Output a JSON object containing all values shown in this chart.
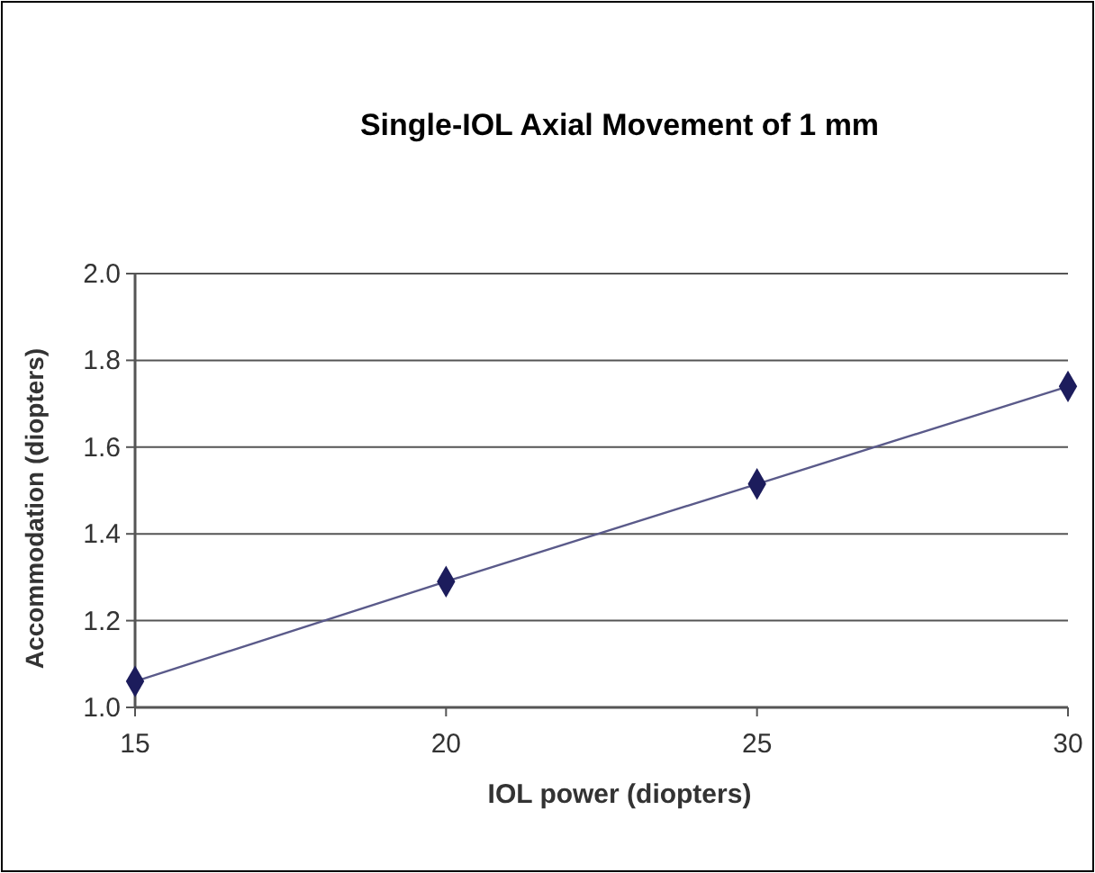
{
  "chart_data": {
    "type": "line",
    "title": "Single-IOL Axial Movement of 1 mm",
    "xlabel": "IOL power (diopters)",
    "ylabel": "Accommodation (diopters)",
    "x": [
      15,
      20,
      25,
      30
    ],
    "series": [
      {
        "color": "#1c1c5c",
        "values": [
          1.06,
          1.29,
          1.515,
          1.74
        ]
      }
    ],
    "xlim": [
      15,
      30
    ],
    "xticks": [
      15,
      20,
      25,
      30
    ],
    "ylim": [
      1.0,
      2.0
    ],
    "yticks": [
      {
        "value": 1.0,
        "label": "1.0"
      },
      1.2,
      1.4,
      1.6,
      1.8,
      {
        "value": 2.0,
        "label": "2.0"
      }
    ],
    "grid": "y",
    "marker": "diamond",
    "line_style": "solid"
  }
}
